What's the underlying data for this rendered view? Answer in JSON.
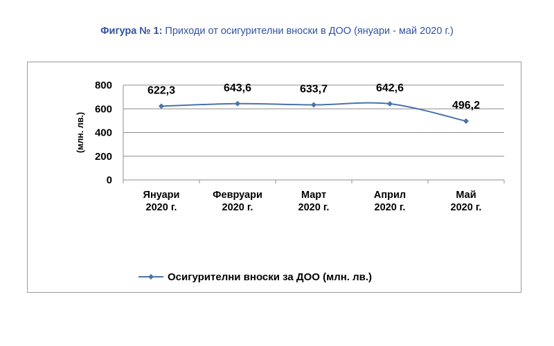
{
  "figure": {
    "title_lead": "Фигура № 1:",
    "title_text": " Приходи от осигурителни вноски в ДОО (януари - май 2020 г.)"
  },
  "chart_data": {
    "type": "line",
    "title": "Фигура № 1: Приходи от осигурителни вноски в ДОО (януари - май 2020 г.)",
    "categories": [
      [
        "Януари",
        "2020 г."
      ],
      [
        "Февруари",
        "2020 г."
      ],
      [
        "Март",
        "2020 г."
      ],
      [
        "Април",
        "2020 г."
      ],
      [
        "Май",
        "2020 г."
      ]
    ],
    "series": [
      {
        "name": "Осигурителни вноски за ДОО (млн. лв.)",
        "values": [
          622.3,
          643.6,
          633.7,
          642.6,
          496.2
        ],
        "labels": [
          "622,3",
          "643,6",
          "633,7",
          "642,6",
          "496,2"
        ],
        "color": "#4a72a8"
      }
    ],
    "ylabel": "(млн. лв.)",
    "xlabel": "",
    "ylim": [
      0,
      800
    ],
    "yticks": [
      0,
      200,
      400,
      600,
      800
    ],
    "grid": true,
    "legend": "bottom",
    "smooth": true
  }
}
